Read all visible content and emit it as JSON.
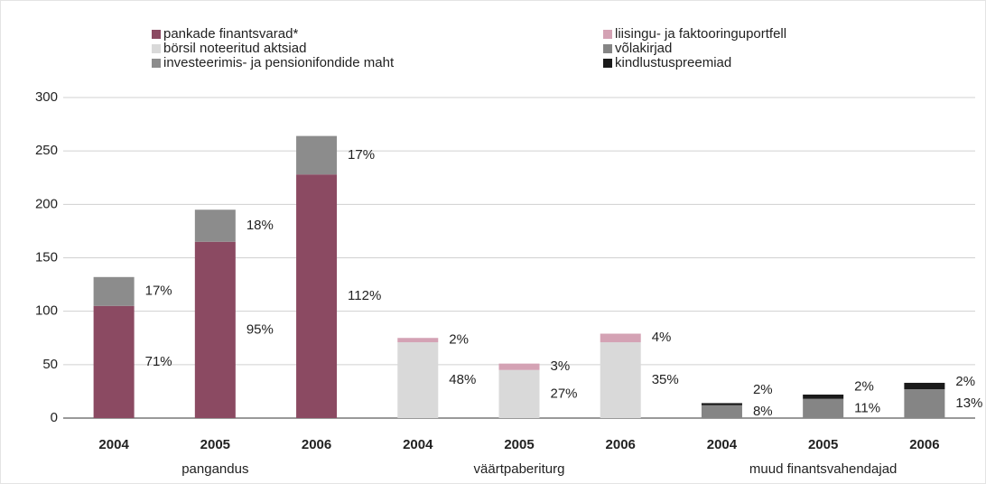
{
  "chart_data": {
    "type": "bar",
    "stacked": true,
    "categories": [
      "2004",
      "2005",
      "2006",
      "2004",
      "2005",
      "2006",
      "2004",
      "2005",
      "2006"
    ],
    "groups": [
      "pangandus",
      "väärtpaberiturg",
      "muud finantsvahendajad"
    ],
    "series": [
      {
        "name": "pankade finantsvarad*",
        "color": "#8b4a62",
        "values": [
          105,
          165,
          228,
          null,
          null,
          null,
          null,
          null,
          null
        ],
        "shares": [
          "71%",
          "95%",
          "112%",
          null,
          null,
          null,
          null,
          null,
          null
        ]
      },
      {
        "name": "börsil noteeritud aktsiad",
        "color": "#d9d9d9",
        "values": [
          null,
          null,
          null,
          71,
          45,
          71,
          null,
          null,
          null
        ],
        "shares": [
          null,
          null,
          null,
          "48%",
          "27%",
          "35%",
          null,
          null,
          null
        ]
      },
      {
        "name": "investeerimis- ja pensionifondide maht",
        "color": "#8c8c8c",
        "values": [
          27,
          30,
          36,
          null,
          null,
          null,
          null,
          null,
          null
        ],
        "shares": [
          "17%",
          "18%",
          "17%",
          null,
          null,
          null,
          null,
          null,
          null
        ]
      },
      {
        "name": "liisingu- ja faktooringuportfell",
        "color": "#d4a2b4",
        "values": [
          null,
          null,
          null,
          4,
          6,
          8,
          null,
          null,
          null
        ],
        "shares": [
          null,
          null,
          null,
          "2%",
          "3%",
          "4%",
          null,
          null,
          null
        ]
      },
      {
        "name": "võlakirjad",
        "color": "#858585",
        "values": [
          null,
          null,
          null,
          null,
          null,
          null,
          12,
          18,
          27
        ],
        "shares": [
          null,
          null,
          null,
          null,
          null,
          null,
          "8%",
          "11%",
          "13%"
        ]
      },
      {
        "name": "kindlustuspreemiad",
        "color": "#1a1a1a",
        "values": [
          null,
          null,
          null,
          null,
          null,
          null,
          2,
          4,
          6
        ],
        "shares": [
          null,
          null,
          null,
          null,
          null,
          null,
          "2%",
          "2%",
          "2%"
        ]
      }
    ],
    "ylim": [
      0,
      300
    ],
    "yticks": [
      0,
      50,
      100,
      150,
      200,
      250,
      300
    ],
    "grid": true
  }
}
